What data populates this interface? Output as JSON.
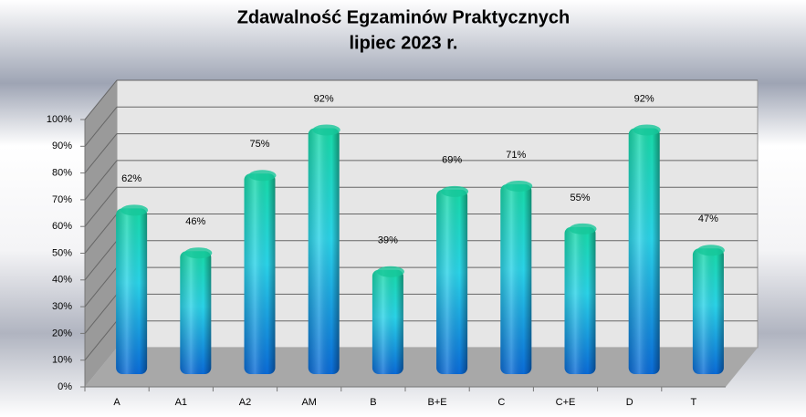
{
  "chart_data": {
    "type": "bar3d",
    "title": "Zdawalność Egzaminów Praktycznych",
    "subtitle": "lipiec 2023 r.",
    "categories": [
      "A",
      "A1",
      "A2",
      "AM",
      "B",
      "B+E",
      "C",
      "C+E",
      "D",
      "T"
    ],
    "values": [
      62,
      46,
      75,
      92,
      39,
      69,
      71,
      55,
      92,
      47
    ],
    "value_labels": [
      "62%",
      "46%",
      "75%",
      "92%",
      "39%",
      "69%",
      "71%",
      "55%",
      "92%",
      "47%"
    ],
    "ylim": [
      0,
      100
    ],
    "yticks": [
      {
        "value": 0,
        "label": "0%"
      },
      {
        "value": 10,
        "label": "10%"
      },
      {
        "value": 20,
        "label": "20%"
      },
      {
        "value": 30,
        "label": "30%"
      },
      {
        "value": 40,
        "label": "40%"
      },
      {
        "value": 50,
        "label": "50%"
      },
      {
        "value": 60,
        "label": "60%"
      },
      {
        "value": 70,
        "label": "70%"
      },
      {
        "value": 80,
        "label": "80%"
      },
      {
        "value": 90,
        "label": "90%"
      },
      {
        "value": 100,
        "label": "100%"
      }
    ],
    "grid": true
  }
}
